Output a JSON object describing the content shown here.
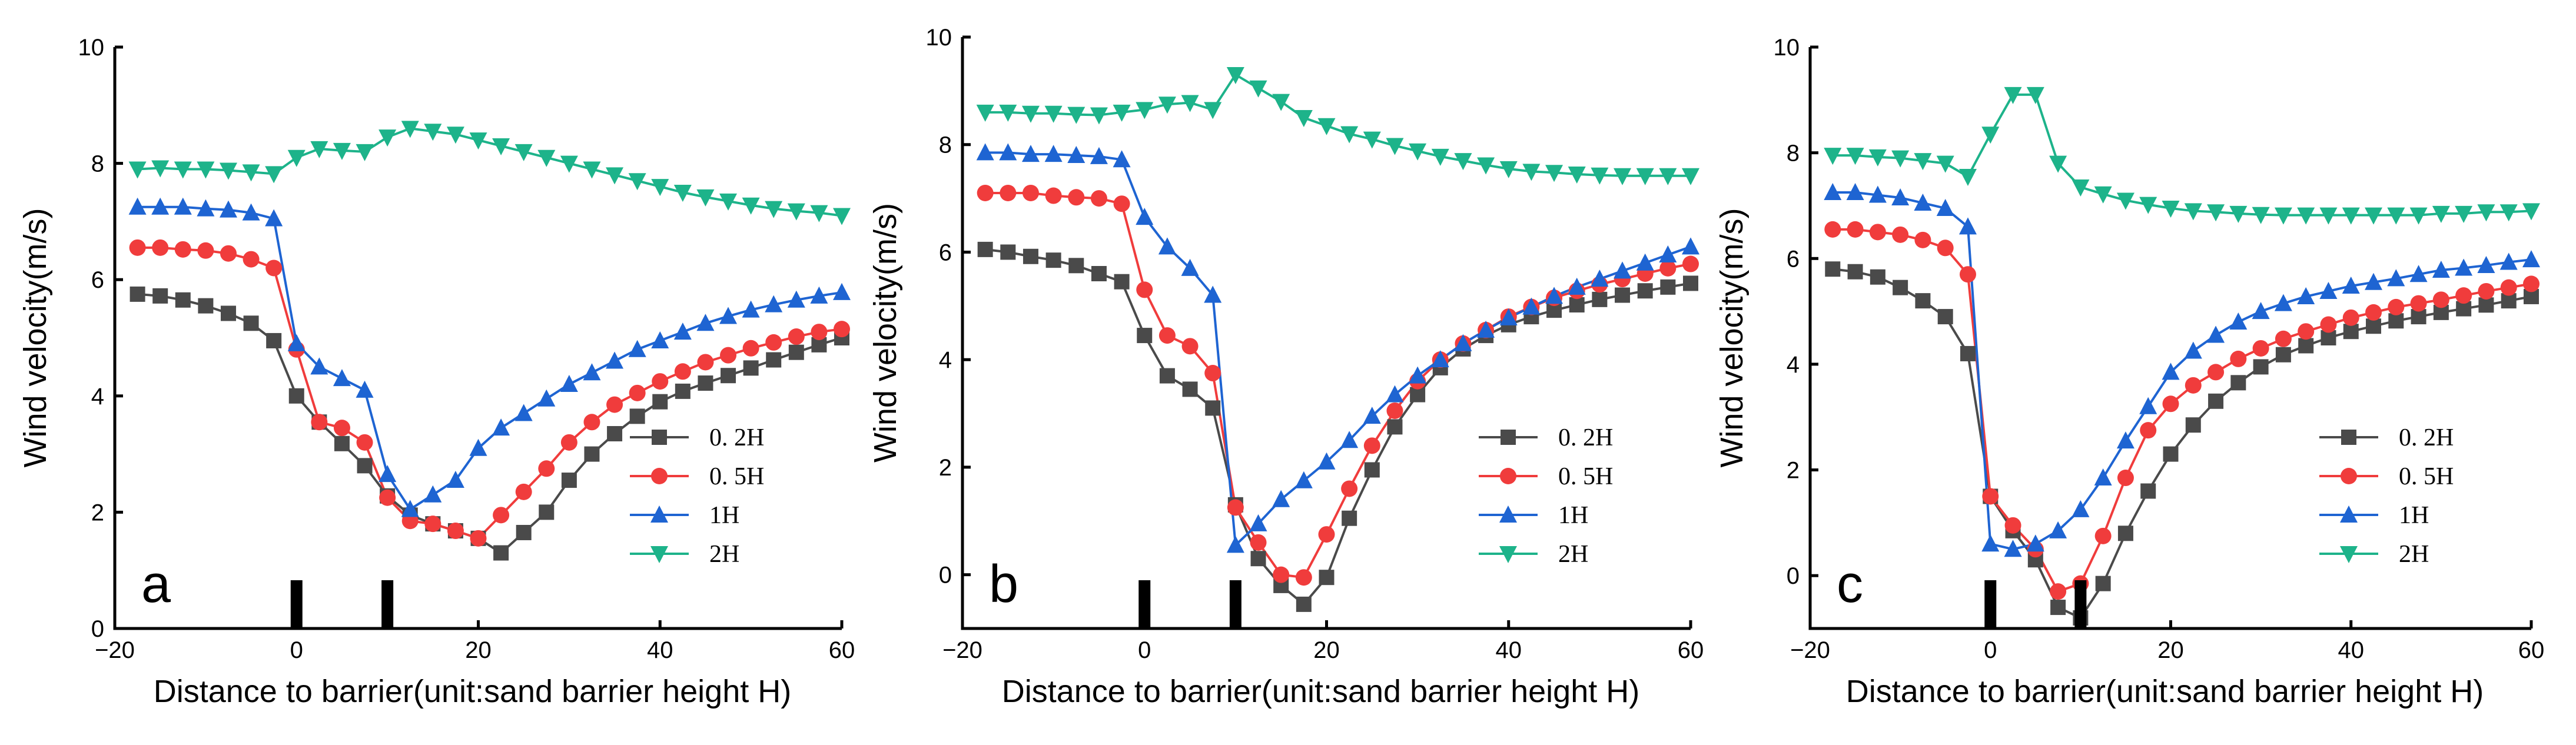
{
  "chart_data": [
    {
      "type": "line",
      "panel_label": "a",
      "xlabel": "Distance to barrier(unit:sand barrier height H)",
      "ylabel": "Wind velocity(m/s)",
      "xlim": [
        -20,
        60
      ],
      "ylim": [
        0,
        10
      ],
      "xticks": [
        -20,
        0,
        20,
        40,
        60
      ],
      "yticks": [
        0,
        2,
        4,
        6,
        8,
        10
      ],
      "barrier_positions": [
        0,
        10
      ],
      "legend_position": "lower-right",
      "series": [
        {
          "name": "0. 2H",
          "color": "#4a4a4a",
          "marker": "square",
          "x": [
            -17.5,
            -15,
            -12.5,
            -10,
            -7.5,
            -5,
            -2.5,
            0,
            2.5,
            5,
            7.5,
            10,
            12.5,
            15,
            17.5,
            20,
            22.5,
            25,
            27.5,
            30,
            32.5,
            35,
            37.5,
            40,
            42.5,
            45,
            47.5,
            50,
            52.5,
            55,
            57.5,
            60
          ],
          "y": [
            5.75,
            5.72,
            5.65,
            5.55,
            5.42,
            5.25,
            4.95,
            4.0,
            3.55,
            3.18,
            2.8,
            2.28,
            1.95,
            1.8,
            1.68,
            1.55,
            1.3,
            1.65,
            2.0,
            2.55,
            3.0,
            3.35,
            3.65,
            3.9,
            4.08,
            4.22,
            4.35,
            4.48,
            4.62,
            4.75,
            4.88,
            5.0
          ]
        },
        {
          "name": "0. 5H",
          "color": "#f03c3c",
          "marker": "circle",
          "x": [
            -17.5,
            -15,
            -12.5,
            -10,
            -7.5,
            -5,
            -2.5,
            0,
            2.5,
            5,
            7.5,
            10,
            12.5,
            15,
            17.5,
            20,
            22.5,
            25,
            27.5,
            30,
            32.5,
            35,
            37.5,
            40,
            42.5,
            45,
            47.5,
            50,
            52.5,
            55,
            57.5,
            60
          ],
          "y": [
            6.55,
            6.55,
            6.52,
            6.5,
            6.45,
            6.35,
            6.2,
            4.8,
            3.55,
            3.45,
            3.2,
            2.25,
            1.85,
            1.8,
            1.68,
            1.55,
            1.95,
            2.35,
            2.75,
            3.2,
            3.55,
            3.85,
            4.05,
            4.25,
            4.42,
            4.58,
            4.7,
            4.82,
            4.92,
            5.02,
            5.1,
            5.15
          ]
        },
        {
          "name": "1H",
          "color": "#1e64d2",
          "marker": "triangle-up",
          "x": [
            -17.5,
            -15,
            -12.5,
            -10,
            -7.5,
            -5,
            -2.5,
            0,
            2.5,
            5,
            7.5,
            10,
            12.5,
            15,
            17.5,
            20,
            22.5,
            25,
            27.5,
            30,
            32.5,
            35,
            37.5,
            40,
            42.5,
            45,
            47.5,
            50,
            52.5,
            55,
            57.5,
            60
          ],
          "y": [
            7.25,
            7.25,
            7.25,
            7.22,
            7.2,
            7.15,
            7.05,
            4.9,
            4.5,
            4.3,
            4.1,
            2.65,
            2.05,
            2.3,
            2.55,
            3.1,
            3.45,
            3.7,
            3.95,
            4.2,
            4.4,
            4.6,
            4.8,
            4.95,
            5.1,
            5.25,
            5.37,
            5.48,
            5.57,
            5.65,
            5.72,
            5.78
          ]
        },
        {
          "name": "2H",
          "color": "#1db38a",
          "marker": "triangle-down",
          "x": [
            -17.5,
            -15,
            -12.5,
            -10,
            -7.5,
            -5,
            -2.5,
            0,
            2.5,
            5,
            7.5,
            10,
            12.5,
            15,
            17.5,
            20,
            22.5,
            25,
            27.5,
            30,
            32.5,
            35,
            37.5,
            40,
            42.5,
            45,
            47.5,
            50,
            52.5,
            55,
            57.5,
            60
          ],
          "y": [
            7.9,
            7.92,
            7.9,
            7.9,
            7.88,
            7.85,
            7.82,
            8.1,
            8.25,
            8.22,
            8.2,
            8.45,
            8.6,
            8.55,
            8.5,
            8.4,
            8.3,
            8.2,
            8.1,
            8.0,
            7.9,
            7.8,
            7.7,
            7.6,
            7.5,
            7.42,
            7.35,
            7.28,
            7.22,
            7.18,
            7.15,
            7.1
          ]
        }
      ]
    },
    {
      "type": "line",
      "panel_label": "b",
      "xlabel": "Distance to barrier(unit:sand barrier height H)",
      "ylabel": "Wind velocity(m/s)",
      "xlim": [
        -20,
        60
      ],
      "ylim": [
        -1,
        10
      ],
      "xticks": [
        -20,
        0,
        20,
        40,
        60
      ],
      "yticks": [
        0,
        2,
        4,
        6,
        8,
        10
      ],
      "barrier_positions": [
        0,
        10
      ],
      "legend_position": "lower-right",
      "series": [
        {
          "name": "0. 2H",
          "color": "#4a4a4a",
          "marker": "square",
          "x": [
            -17.5,
            -15,
            -12.5,
            -10,
            -7.5,
            -5,
            -2.5,
            0,
            2.5,
            5,
            7.5,
            10,
            12.5,
            15,
            17.5,
            20,
            22.5,
            25,
            27.5,
            30,
            32.5,
            35,
            37.5,
            40,
            42.5,
            45,
            47.5,
            50,
            52.5,
            55,
            57.5,
            60
          ],
          "y": [
            6.05,
            6.0,
            5.92,
            5.85,
            5.75,
            5.6,
            5.45,
            4.45,
            3.7,
            3.45,
            3.1,
            1.3,
            0.3,
            -0.2,
            -0.55,
            -0.05,
            1.05,
            1.95,
            2.75,
            3.35,
            3.85,
            4.2,
            4.45,
            4.65,
            4.8,
            4.92,
            5.02,
            5.12,
            5.2,
            5.28,
            5.35,
            5.42
          ]
        },
        {
          "name": "0. 5H",
          "color": "#f03c3c",
          "marker": "circle",
          "x": [
            -17.5,
            -15,
            -12.5,
            -10,
            -7.5,
            -5,
            -2.5,
            0,
            2.5,
            5,
            7.5,
            10,
            12.5,
            15,
            17.5,
            20,
            22.5,
            25,
            27.5,
            30,
            32.5,
            35,
            37.5,
            40,
            42.5,
            45,
            47.5,
            50,
            52.5,
            55,
            57.5,
            60
          ],
          "y": [
            7.1,
            7.1,
            7.1,
            7.05,
            7.02,
            7.0,
            6.9,
            5.3,
            4.45,
            4.25,
            3.75,
            1.25,
            0.6,
            0.0,
            -0.05,
            0.75,
            1.6,
            2.4,
            3.05,
            3.6,
            4.0,
            4.3,
            4.55,
            4.8,
            4.98,
            5.15,
            5.28,
            5.4,
            5.5,
            5.6,
            5.7,
            5.78
          ]
        },
        {
          "name": "1H",
          "color": "#1e64d2",
          "marker": "triangle-up",
          "x": [
            -17.5,
            -15,
            -12.5,
            -10,
            -7.5,
            -5,
            -2.5,
            0,
            2.5,
            5,
            7.5,
            10,
            12.5,
            15,
            17.5,
            20,
            22.5,
            25,
            27.5,
            30,
            32.5,
            35,
            37.5,
            40,
            42.5,
            45,
            47.5,
            50,
            52.5,
            55,
            57.5,
            60
          ],
          "y": [
            7.85,
            7.85,
            7.82,
            7.82,
            7.8,
            7.78,
            7.72,
            6.65,
            6.1,
            5.7,
            5.2,
            0.55,
            0.95,
            1.4,
            1.75,
            2.1,
            2.5,
            2.95,
            3.35,
            3.7,
            4.0,
            4.3,
            4.55,
            4.78,
            4.98,
            5.18,
            5.35,
            5.5,
            5.65,
            5.8,
            5.95,
            6.1
          ]
        },
        {
          "name": "2H",
          "color": "#1db38a",
          "marker": "triangle-down",
          "x": [
            -17.5,
            -15,
            -12.5,
            -10,
            -7.5,
            -5,
            -2.5,
            0,
            2.5,
            5,
            7.5,
            10,
            12.5,
            15,
            17.5,
            20,
            22.5,
            25,
            27.5,
            30,
            32.5,
            35,
            37.5,
            40,
            42.5,
            45,
            47.5,
            50,
            52.5,
            55,
            57.5,
            60
          ],
          "y": [
            8.6,
            8.6,
            8.58,
            8.58,
            8.56,
            8.55,
            8.6,
            8.65,
            8.75,
            8.78,
            8.65,
            9.3,
            9.05,
            8.8,
            8.5,
            8.35,
            8.2,
            8.1,
            7.98,
            7.88,
            7.78,
            7.7,
            7.62,
            7.55,
            7.5,
            7.48,
            7.45,
            7.43,
            7.42,
            7.42,
            7.42,
            7.42
          ]
        }
      ]
    },
    {
      "type": "line",
      "panel_label": "c",
      "xlabel": "Distance to barrier(unit:sand barrier height H)",
      "ylabel": "Wind velocity(m/s)",
      "xlim": [
        -20,
        60
      ],
      "ylim": [
        -1,
        10
      ],
      "xticks": [
        -20,
        0,
        20,
        40,
        60
      ],
      "yticks": [
        0,
        2,
        4,
        6,
        8,
        10
      ],
      "barrier_positions": [
        0,
        10
      ],
      "legend_position": "lower-right",
      "series": [
        {
          "name": "0. 2H",
          "color": "#4a4a4a",
          "marker": "square",
          "x": [
            -17.5,
            -15,
            -12.5,
            -10,
            -7.5,
            -5,
            -2.5,
            0,
            2.5,
            5,
            7.5,
            10,
            12.5,
            15,
            17.5,
            20,
            22.5,
            25,
            27.5,
            30,
            32.5,
            35,
            37.5,
            40,
            42.5,
            45,
            47.5,
            50,
            52.5,
            55,
            57.5,
            60
          ],
          "y": [
            5.8,
            5.75,
            5.65,
            5.45,
            5.2,
            4.9,
            4.2,
            1.5,
            0.85,
            0.3,
            -0.6,
            -0.8,
            -0.15,
            0.8,
            1.6,
            2.3,
            2.85,
            3.3,
            3.65,
            3.95,
            4.18,
            4.35,
            4.5,
            4.62,
            4.72,
            4.82,
            4.9,
            4.98,
            5.05,
            5.12,
            5.2,
            5.28
          ]
        },
        {
          "name": "0. 5H",
          "color": "#f03c3c",
          "marker": "circle",
          "x": [
            -17.5,
            -15,
            -12.5,
            -10,
            -7.5,
            -5,
            -2.5,
            0,
            2.5,
            5,
            7.5,
            10,
            12.5,
            15,
            17.5,
            20,
            22.5,
            25,
            27.5,
            30,
            32.5,
            35,
            37.5,
            40,
            42.5,
            45,
            47.5,
            50,
            52.5,
            55,
            57.5,
            60
          ],
          "y": [
            6.55,
            6.55,
            6.5,
            6.45,
            6.35,
            6.2,
            5.7,
            1.5,
            0.95,
            0.5,
            -0.3,
            -0.15,
            0.75,
            1.85,
            2.75,
            3.25,
            3.6,
            3.85,
            4.1,
            4.3,
            4.48,
            4.62,
            4.75,
            4.88,
            4.98,
            5.08,
            5.15,
            5.22,
            5.3,
            5.38,
            5.45,
            5.52
          ]
        },
        {
          "name": "1H",
          "color": "#1e64d2",
          "marker": "triangle-up",
          "x": [
            -17.5,
            -15,
            -12.5,
            -10,
            -7.5,
            -5,
            -2.5,
            0,
            2.5,
            5,
            7.5,
            10,
            12.5,
            15,
            17.5,
            20,
            22.5,
            25,
            27.5,
            30,
            32.5,
            35,
            37.5,
            40,
            42.5,
            45,
            47.5,
            50,
            52.5,
            55,
            57.5,
            60
          ],
          "y": [
            7.25,
            7.25,
            7.2,
            7.15,
            7.05,
            6.95,
            6.6,
            0.6,
            0.5,
            0.6,
            0.85,
            1.25,
            1.85,
            2.55,
            3.2,
            3.85,
            4.25,
            4.55,
            4.8,
            5.0,
            5.15,
            5.28,
            5.38,
            5.48,
            5.55,
            5.62,
            5.7,
            5.78,
            5.82,
            5.87,
            5.93,
            5.98
          ]
        },
        {
          "name": "2H",
          "color": "#1db38a",
          "marker": "triangle-down",
          "x": [
            -17.5,
            -15,
            -12.5,
            -10,
            -7.5,
            -5,
            -2.5,
            0,
            2.5,
            5,
            7.5,
            10,
            12.5,
            15,
            17.5,
            20,
            22.5,
            25,
            27.5,
            30,
            32.5,
            35,
            37.5,
            40,
            42.5,
            45,
            47.5,
            50,
            52.5,
            55,
            57.5,
            60
          ],
          "y": [
            7.95,
            7.95,
            7.92,
            7.9,
            7.85,
            7.8,
            7.55,
            8.35,
            9.1,
            9.1,
            7.8,
            7.35,
            7.22,
            7.1,
            7.02,
            6.95,
            6.9,
            6.88,
            6.85,
            6.83,
            6.82,
            6.82,
            6.82,
            6.82,
            6.82,
            6.82,
            6.82,
            6.85,
            6.85,
            6.88,
            6.88,
            6.9
          ]
        }
      ]
    }
  ]
}
